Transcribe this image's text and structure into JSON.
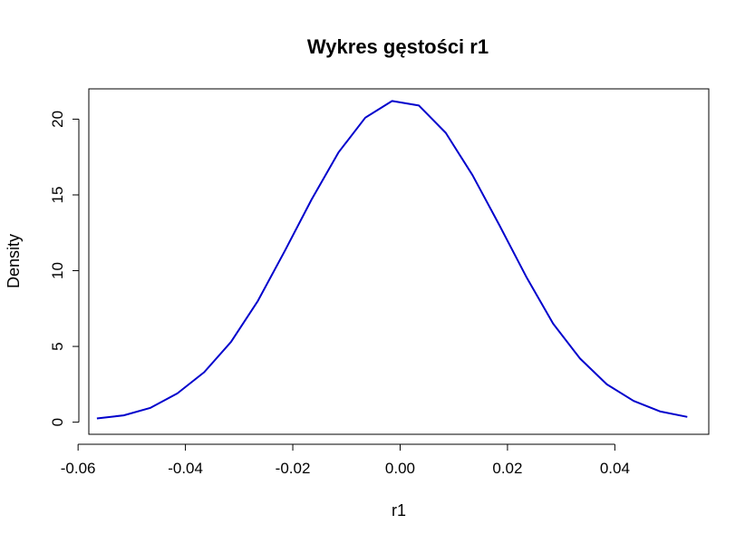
{
  "chart_data": {
    "type": "line",
    "title": "Wykres gęstości r1",
    "xlabel": "r1",
    "ylabel": "Density",
    "xlim": [
      -0.058,
      0.0575
    ],
    "ylim": [
      -0.8,
      22.0
    ],
    "x_ticks": [
      -0.06,
      -0.04,
      -0.02,
      0.0,
      0.02,
      0.04
    ],
    "x_tick_labels": [
      "-0.06",
      "-0.04",
      "-0.02",
      "0.00",
      "0.02",
      "0.04"
    ],
    "y_ticks": [
      0,
      5,
      10,
      15,
      20
    ],
    "y_tick_labels": [
      "0",
      "5",
      "10",
      "15",
      "20"
    ],
    "grid": false,
    "series": [
      {
        "color": "#0000cc",
        "x": [
          -0.0565,
          -0.0515,
          -0.0465,
          -0.0415,
          -0.0365,
          -0.0315,
          -0.0265,
          -0.0215,
          -0.0165,
          -0.0115,
          -0.0065,
          -0.0015,
          0.0035,
          0.0085,
          0.0135,
          0.0185,
          0.0235,
          0.0285,
          0.0335,
          0.0385,
          0.0435,
          0.0485,
          0.0535
        ],
        "y": [
          0.25,
          0.45,
          0.95,
          1.9,
          3.3,
          5.3,
          8.0,
          11.3,
          14.7,
          17.8,
          20.1,
          21.2,
          20.9,
          19.1,
          16.3,
          13.0,
          9.6,
          6.5,
          4.2,
          2.5,
          1.4,
          0.7,
          0.35
        ]
      }
    ]
  }
}
